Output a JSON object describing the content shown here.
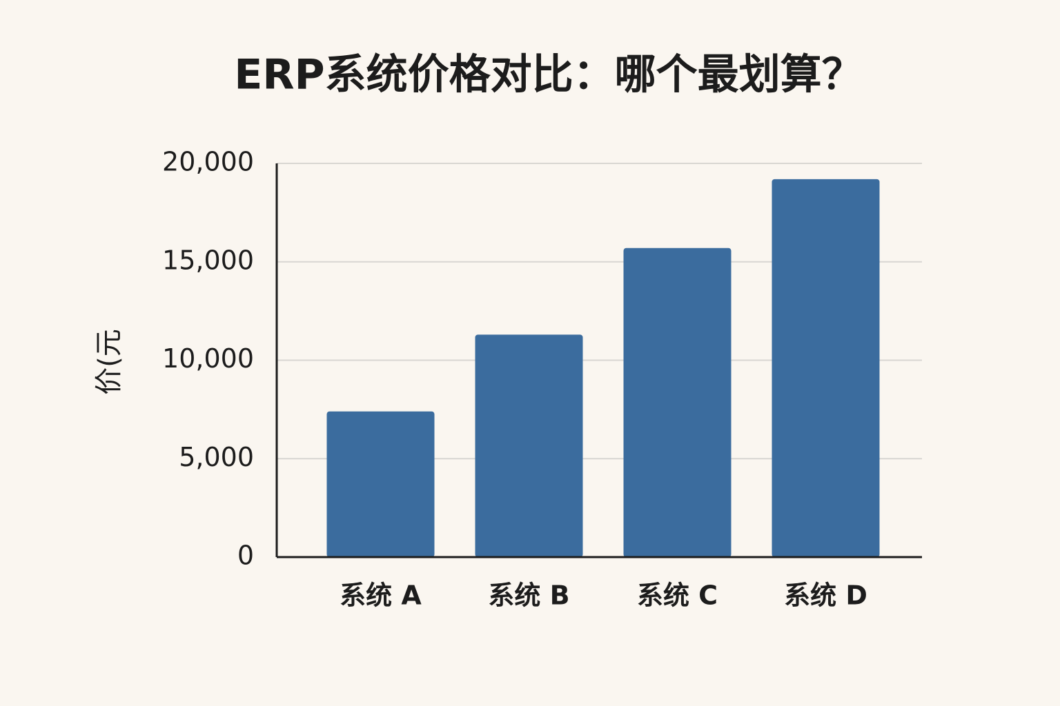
{
  "chart_data": {
    "type": "bar",
    "title": "ERP系统价格对比：哪个最划算？",
    "y_label": "价(元",
    "categories": [
      "系统 A",
      "系统 B",
      "系统 C",
      "系统 D"
    ],
    "values": [
      7400,
      11300,
      15700,
      19200
    ],
    "color": "#3b6c9e",
    "ylim": [
      0,
      20000
    ],
    "yticks": [
      0,
      {
        "value": 5000,
        "label": "5,000"
      },
      {
        "value": 10000,
        "label": "10,000"
      },
      {
        "value": 15000,
        "label": "15,000"
      },
      {
        "value": 20000,
        "label": "20,000"
      }
    ],
    "grid": true
  }
}
